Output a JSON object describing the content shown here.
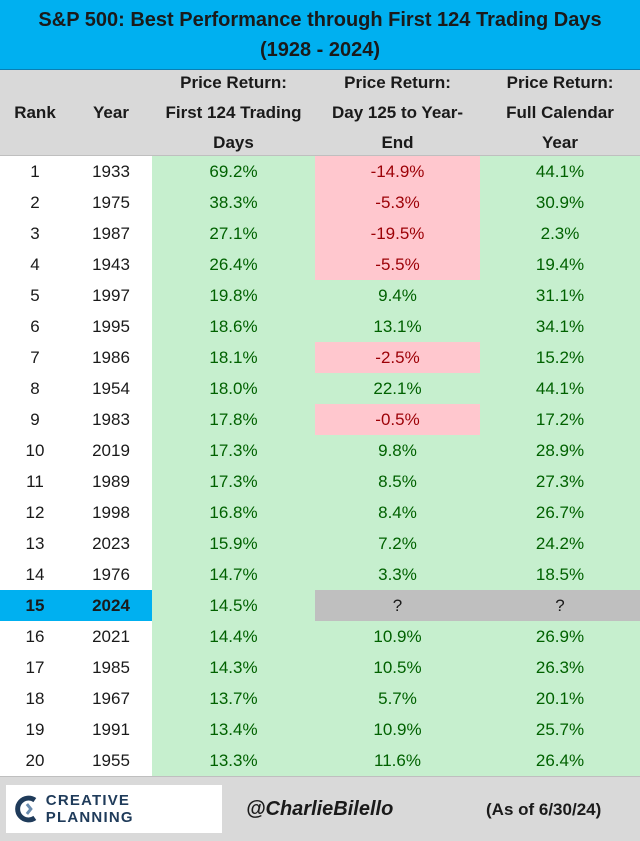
{
  "title": {
    "line1": "S&P 500: Best Performance through First 124 Trading Days",
    "line2": "(1928 - 2024)"
  },
  "headers": {
    "rank": "Rank",
    "year": "Year",
    "first": [
      "Price Return:",
      "First 124 Trading",
      "Days"
    ],
    "rest": [
      "Price Return:",
      "Day 125 to Year-",
      "End"
    ],
    "full": [
      "Price Return:",
      "Full Calendar",
      "Year"
    ]
  },
  "footer": {
    "logo": "CREATIVE PLANNING",
    "handle": "@CharlieBilello",
    "as_of": "(As of 6/30/24)"
  },
  "colors": {
    "accent": "#00b0f0",
    "positive_fill": "#c6efce",
    "positive_text": "#006100",
    "negative_fill": "#ffc7ce",
    "negative_text": "#9c0006",
    "unknown_fill": "#bfbfbf"
  },
  "chart_data": {
    "type": "table",
    "title": "S&P 500: Best Performance through First 124 Trading Days (1928 - 2024)",
    "columns": [
      "Rank",
      "Year",
      "Price Return: First 124 Trading Days",
      "Price Return: Day 125 to Year-End",
      "Price Return: Full Calendar Year"
    ],
    "highlight_rank": "15",
    "rows": [
      {
        "rank": "1",
        "year": "1933",
        "first": "69.2%",
        "rest": "-14.9%",
        "full": "44.1%"
      },
      {
        "rank": "2",
        "year": "1975",
        "first": "38.3%",
        "rest": "-5.3%",
        "full": "30.9%"
      },
      {
        "rank": "3",
        "year": "1987",
        "first": "27.1%",
        "rest": "-19.5%",
        "full": "2.3%"
      },
      {
        "rank": "4",
        "year": "1943",
        "first": "26.4%",
        "rest": "-5.5%",
        "full": "19.4%"
      },
      {
        "rank": "5",
        "year": "1997",
        "first": "19.8%",
        "rest": "9.4%",
        "full": "31.1%"
      },
      {
        "rank": "6",
        "year": "1995",
        "first": "18.6%",
        "rest": "13.1%",
        "full": "34.1%"
      },
      {
        "rank": "7",
        "year": "1986",
        "first": "18.1%",
        "rest": "-2.5%",
        "full": "15.2%"
      },
      {
        "rank": "8",
        "year": "1954",
        "first": "18.0%",
        "rest": "22.1%",
        "full": "44.1%"
      },
      {
        "rank": "9",
        "year": "1983",
        "first": "17.8%",
        "rest": "-0.5%",
        "full": "17.2%"
      },
      {
        "rank": "10",
        "year": "2019",
        "first": "17.3%",
        "rest": "9.8%",
        "full": "28.9%"
      },
      {
        "rank": "11",
        "year": "1989",
        "first": "17.3%",
        "rest": "8.5%",
        "full": "27.3%"
      },
      {
        "rank": "12",
        "year": "1998",
        "first": "16.8%",
        "rest": "8.4%",
        "full": "26.7%"
      },
      {
        "rank": "13",
        "year": "2023",
        "first": "15.9%",
        "rest": "7.2%",
        "full": "24.2%"
      },
      {
        "rank": "14",
        "year": "1976",
        "first": "14.7%",
        "rest": "3.3%",
        "full": "18.5%"
      },
      {
        "rank": "15",
        "year": "2024",
        "first": "14.5%",
        "rest": "?",
        "full": "?"
      },
      {
        "rank": "16",
        "year": "2021",
        "first": "14.4%",
        "rest": "10.9%",
        "full": "26.9%"
      },
      {
        "rank": "17",
        "year": "1985",
        "first": "14.3%",
        "rest": "10.5%",
        "full": "26.3%"
      },
      {
        "rank": "18",
        "year": "1967",
        "first": "13.7%",
        "rest": "5.7%",
        "full": "20.1%"
      },
      {
        "rank": "19",
        "year": "1991",
        "first": "13.4%",
        "rest": "10.9%",
        "full": "25.7%"
      },
      {
        "rank": "20",
        "year": "1955",
        "first": "13.3%",
        "rest": "11.6%",
        "full": "26.4%"
      }
    ]
  }
}
